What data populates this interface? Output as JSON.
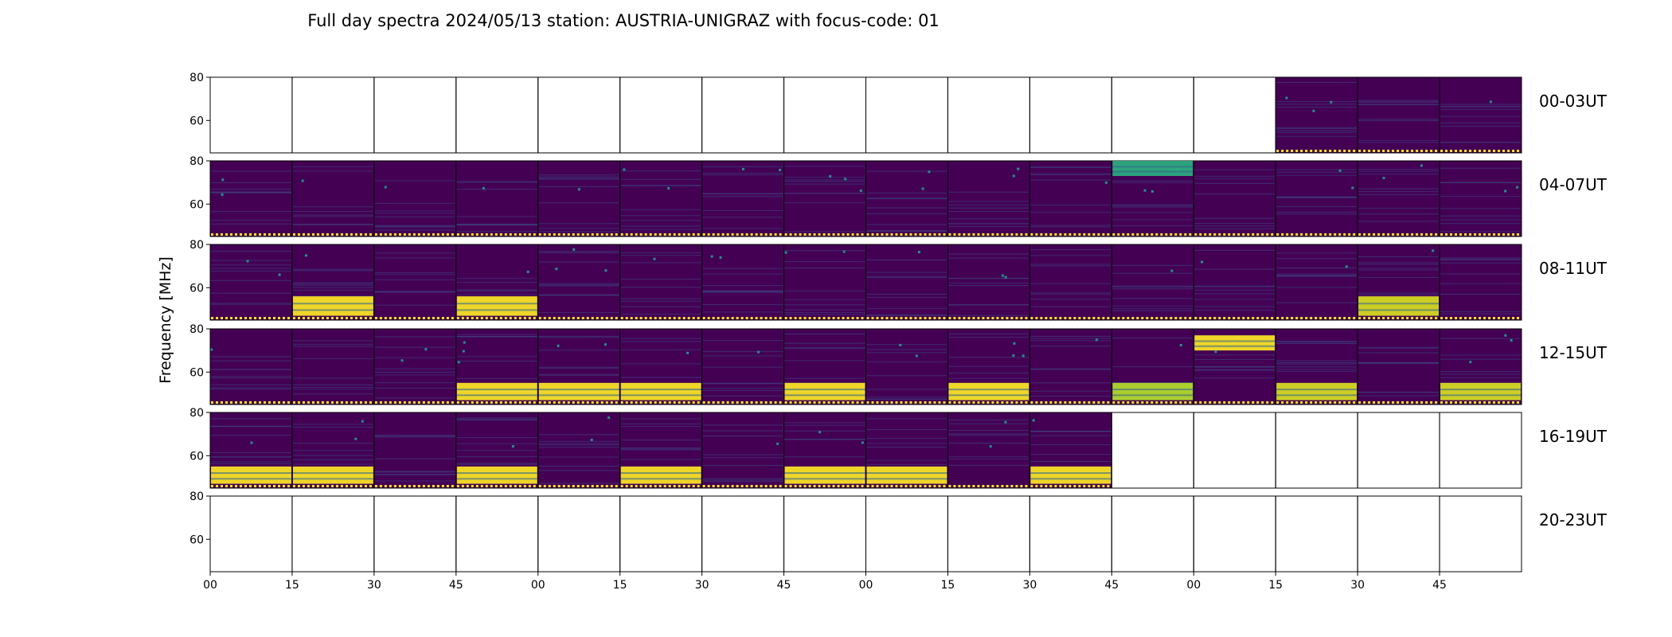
{
  "chart_data": {
    "type": "heatmap",
    "title": "Full day spectra 2024/05/13 station: AUSTRIA-UNIGRAZ with focus-code: 01",
    "ylabel": "Frequency [MHz]",
    "ylim": [
      45,
      80
    ],
    "y_ticks": [
      "80",
      "60"
    ],
    "x_ticks": [
      "00",
      "15",
      "30",
      "45",
      "00",
      "15",
      "30",
      "45",
      "00",
      "15",
      "30",
      "45",
      "00",
      "15",
      "30",
      "45"
    ],
    "minutes_per_panel": 15,
    "colormap": [
      "#440154",
      "#3b528b",
      "#21918c",
      "#5ec962",
      "#fde725"
    ],
    "rows": [
      {
        "label": "00-03UT",
        "panels": [
          0,
          0,
          0,
          0,
          0,
          0,
          0,
          0,
          0,
          0,
          0,
          0,
          0,
          1,
          1,
          1
        ]
      },
      {
        "label": "04-07UT",
        "panels": [
          1,
          1,
          1,
          1,
          1,
          1,
          1,
          1,
          1,
          1,
          1,
          1,
          1,
          1,
          1,
          1
        ]
      },
      {
        "label": "08-11UT",
        "panels": [
          1,
          1,
          1,
          1,
          1,
          1,
          1,
          1,
          1,
          1,
          1,
          1,
          1,
          1,
          1,
          1
        ]
      },
      {
        "label": "12-15UT",
        "panels": [
          1,
          1,
          1,
          1,
          1,
          1,
          1,
          1,
          1,
          1,
          1,
          1,
          1,
          1,
          1,
          1
        ]
      },
      {
        "label": "16-19UT",
        "panels": [
          1,
          1,
          1,
          1,
          1,
          1,
          1,
          1,
          1,
          1,
          1,
          0,
          0,
          0,
          0,
          0
        ]
      },
      {
        "label": "20-23UT",
        "panels": [
          0,
          0,
          0,
          0,
          0,
          0,
          0,
          0,
          0,
          0,
          0,
          0,
          0,
          0,
          0,
          0
        ]
      }
    ],
    "bursts": [
      {
        "row": 1,
        "panel": 11,
        "f_low": 73,
        "f_high": 80,
        "color": "#2ab07f"
      },
      {
        "row": 2,
        "panel": 1,
        "f_low": 47,
        "f_high": 56,
        "color": "#fde725"
      },
      {
        "row": 2,
        "panel": 3,
        "f_low": 47,
        "f_high": 56,
        "color": "#fde725"
      },
      {
        "row": 2,
        "panel": 14,
        "f_low": 47,
        "f_high": 56,
        "color": "#d9e021"
      },
      {
        "row": 3,
        "panel": 3,
        "f_low": 47,
        "f_high": 55,
        "color": "#fde725"
      },
      {
        "row": 3,
        "panel": 4,
        "f_low": 47,
        "f_high": 55,
        "color": "#fde725"
      },
      {
        "row": 3,
        "panel": 5,
        "f_low": 47,
        "f_high": 55,
        "color": "#fde725"
      },
      {
        "row": 3,
        "panel": 7,
        "f_low": 47,
        "f_high": 55,
        "color": "#fde725"
      },
      {
        "row": 3,
        "panel": 9,
        "f_low": 47,
        "f_high": 55,
        "color": "#fde725"
      },
      {
        "row": 3,
        "panel": 11,
        "f_low": 47,
        "f_high": 55,
        "color": "#b5de2b"
      },
      {
        "row": 3,
        "panel": 12,
        "f_low": 70,
        "f_high": 77,
        "color": "#fde725"
      },
      {
        "row": 3,
        "panel": 13,
        "f_low": 47,
        "f_high": 55,
        "color": "#d9e021"
      },
      {
        "row": 3,
        "panel": 15,
        "f_low": 47,
        "f_high": 55,
        "color": "#d9e021"
      },
      {
        "row": 4,
        "panel": 0,
        "f_low": 47,
        "f_high": 55,
        "color": "#fde725"
      },
      {
        "row": 4,
        "panel": 1,
        "f_low": 47,
        "f_high": 55,
        "color": "#fde725"
      },
      {
        "row": 4,
        "panel": 3,
        "f_low": 47,
        "f_high": 55,
        "color": "#fde725"
      },
      {
        "row": 4,
        "panel": 5,
        "f_low": 47,
        "f_high": 55,
        "color": "#fde725"
      },
      {
        "row": 4,
        "panel": 7,
        "f_low": 47,
        "f_high": 55,
        "color": "#fde725"
      },
      {
        "row": 4,
        "panel": 8,
        "f_low": 47,
        "f_high": 55,
        "color": "#fde725"
      },
      {
        "row": 4,
        "panel": 10,
        "f_low": 47,
        "f_high": 55,
        "color": "#fde725"
      }
    ]
  }
}
